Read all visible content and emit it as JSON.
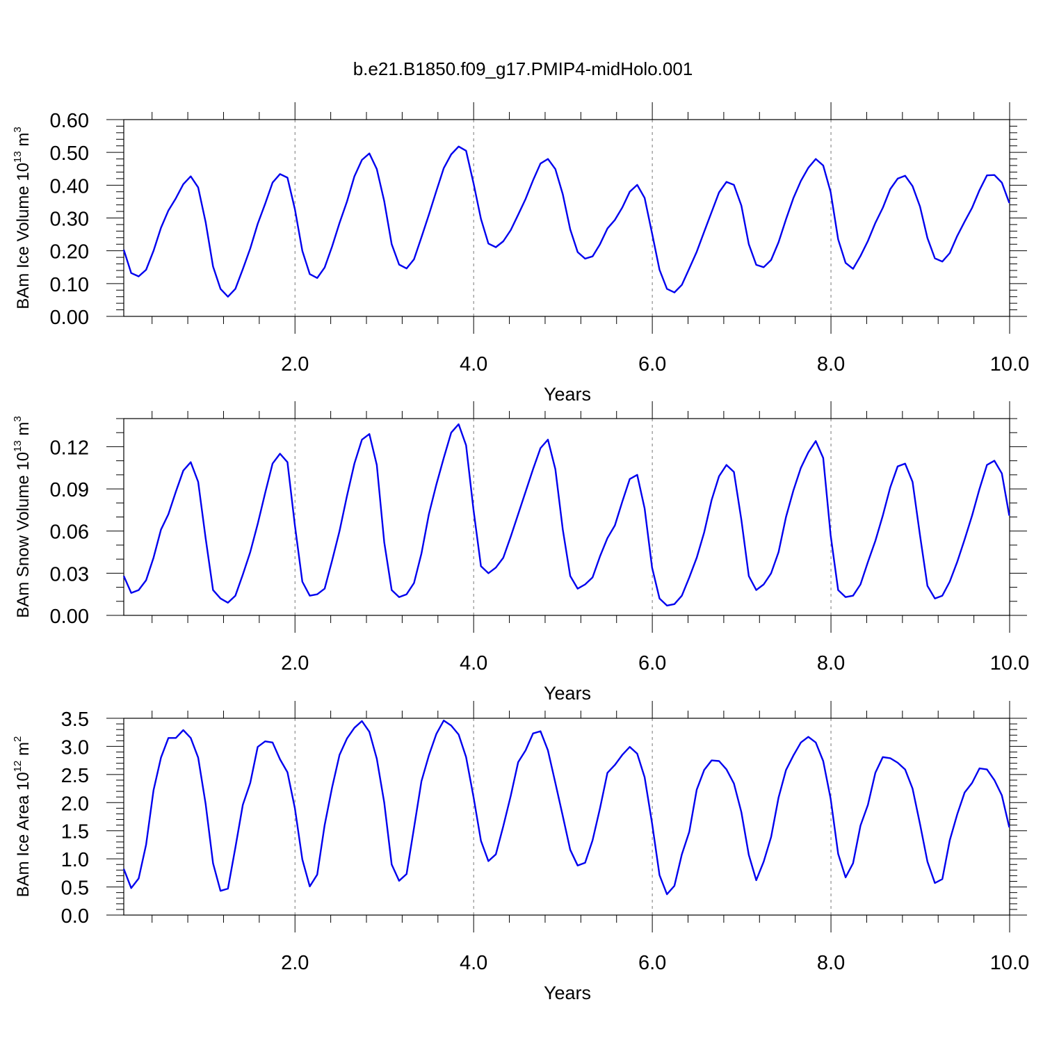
{
  "title": "b.e21.B1850.f09_g17.PMIP4-midHolo.001",
  "chart_data": [
    {
      "type": "line",
      "title": "b.e21.B1850.f09_g17.PMIP4-midHolo.001",
      "xlabel": "Years",
      "ylabel_main": "BAm Ice Volume 10",
      "ylabel_exp": "13",
      "ylabel_unit": " m",
      "ylabel_unit_exp": "3",
      "xlim": [
        0.0833,
        10.0
      ],
      "ylim": [
        0.0,
        0.6
      ],
      "x_ticks": [
        2.0,
        4.0,
        6.0,
        8.0,
        10.0
      ],
      "x_tick_labels": [
        "2.0",
        "4.0",
        "6.0",
        "8.0",
        "10.0"
      ],
      "y_ticks": [
        0.0,
        0.1,
        0.2,
        0.3,
        0.4,
        0.5,
        0.6
      ],
      "y_tick_labels": [
        "0.00",
        "0.10",
        "0.20",
        "0.30",
        "0.40",
        "0.50",
        "0.60"
      ],
      "y_minor_step": 0.02,
      "x_minor_step": 0.4,
      "grid": "vertical dashed at major x ticks",
      "series_color": "#0000ee",
      "x_start": 0.0833,
      "x_step": 0.0833,
      "series": [
        {
          "values": [
            0.203,
            0.132,
            0.122,
            0.142,
            0.2,
            0.27,
            0.323,
            0.36,
            0.403,
            0.427,
            0.393,
            0.288,
            0.152,
            0.084,
            0.06,
            0.084,
            0.144,
            0.207,
            0.282,
            0.343,
            0.408,
            0.434,
            0.423,
            0.327,
            0.2,
            0.129,
            0.117,
            0.149,
            0.213,
            0.285,
            0.35,
            0.427,
            0.477,
            0.497,
            0.449,
            0.351,
            0.22,
            0.158,
            0.146,
            0.174,
            0.241,
            0.31,
            0.382,
            0.452,
            0.494,
            0.518,
            0.505,
            0.406,
            0.297,
            0.222,
            0.211,
            0.229,
            0.263,
            0.31,
            0.358,
            0.415,
            0.466,
            0.48,
            0.449,
            0.372,
            0.265,
            0.196,
            0.176,
            0.183,
            0.22,
            0.268,
            0.294,
            0.332,
            0.38,
            0.401,
            0.361,
            0.253,
            0.142,
            0.084,
            0.073,
            0.096,
            0.146,
            0.197,
            0.258,
            0.318,
            0.378,
            0.41,
            0.401,
            0.338,
            0.22,
            0.157,
            0.15,
            0.172,
            0.226,
            0.296,
            0.361,
            0.413,
            0.453,
            0.48,
            0.46,
            0.379,
            0.235,
            0.163,
            0.145,
            0.184,
            0.23,
            0.285,
            0.331,
            0.388,
            0.42,
            0.429,
            0.397,
            0.335,
            0.239,
            0.177,
            0.167,
            0.193,
            0.245,
            0.289,
            0.331,
            0.385,
            0.43,
            0.431,
            0.408,
            0.346
          ]
        }
      ]
    },
    {
      "type": "line",
      "xlabel": "Years",
      "ylabel_main": "BAm Snow Volume 10",
      "ylabel_exp": "13",
      "ylabel_unit": " m",
      "ylabel_unit_exp": "3",
      "xlim": [
        0.0833,
        10.0
      ],
      "ylim": [
        0.0,
        0.14
      ],
      "x_ticks": [
        2.0,
        4.0,
        6.0,
        8.0,
        10.0
      ],
      "x_tick_labels": [
        "2.0",
        "4.0",
        "6.0",
        "8.0",
        "10.0"
      ],
      "y_ticks": [
        0.0,
        0.03,
        0.06,
        0.09,
        0.12
      ],
      "y_tick_labels": [
        "0.00",
        "0.03",
        "0.06",
        "0.09",
        "0.12"
      ],
      "y_minor_step": 0.01,
      "x_minor_step": 0.4,
      "grid": "vertical dashed at major x ticks",
      "series_color": "#0000ee",
      "x_start": 0.0833,
      "x_step": 0.0833,
      "series": [
        {
          "values": [
            0.028,
            0.016,
            0.018,
            0.025,
            0.041,
            0.061,
            0.072,
            0.088,
            0.103,
            0.109,
            0.095,
            0.055,
            0.018,
            0.012,
            0.009,
            0.014,
            0.029,
            0.045,
            0.065,
            0.087,
            0.108,
            0.115,
            0.109,
            0.064,
            0.024,
            0.014,
            0.015,
            0.019,
            0.039,
            0.06,
            0.085,
            0.108,
            0.125,
            0.129,
            0.107,
            0.052,
            0.018,
            0.013,
            0.015,
            0.023,
            0.044,
            0.072,
            0.093,
            0.112,
            0.13,
            0.136,
            0.121,
            0.075,
            0.035,
            0.03,
            0.034,
            0.041,
            0.056,
            0.072,
            0.088,
            0.104,
            0.119,
            0.125,
            0.104,
            0.061,
            0.028,
            0.019,
            0.022,
            0.027,
            0.042,
            0.055,
            0.064,
            0.081,
            0.097,
            0.1,
            0.076,
            0.034,
            0.012,
            0.007,
            0.008,
            0.014,
            0.027,
            0.041,
            0.059,
            0.082,
            0.099,
            0.107,
            0.102,
            0.068,
            0.028,
            0.018,
            0.022,
            0.03,
            0.045,
            0.07,
            0.089,
            0.105,
            0.116,
            0.124,
            0.112,
            0.057,
            0.018,
            0.013,
            0.014,
            0.022,
            0.038,
            0.053,
            0.071,
            0.091,
            0.106,
            0.108,
            0.095,
            0.057,
            0.021,
            0.012,
            0.014,
            0.024,
            0.038,
            0.054,
            0.071,
            0.09,
            0.107,
            0.11,
            0.101,
            0.071
          ]
        }
      ]
    },
    {
      "type": "line",
      "xlabel": "Years",
      "ylabel_main": "BAm Ice Area 10",
      "ylabel_exp": "12",
      "ylabel_unit": " m",
      "ylabel_unit_exp": "2",
      "xlim": [
        0.0833,
        10.0
      ],
      "ylim": [
        0.0,
        3.5
      ],
      "x_ticks": [
        2.0,
        4.0,
        6.0,
        8.0,
        10.0
      ],
      "x_tick_labels": [
        "2.0",
        "4.0",
        "6.0",
        "8.0",
        "10.0"
      ],
      "y_ticks": [
        0.0,
        0.5,
        1.0,
        1.5,
        2.0,
        2.5,
        3.0,
        3.5
      ],
      "y_tick_labels": [
        "0.0",
        "0.5",
        "1.0",
        "1.5",
        "2.0",
        "2.5",
        "3.0",
        "3.5"
      ],
      "y_minor_step": 0.1,
      "x_minor_step": 0.4,
      "grid": "vertical dashed at major x ticks",
      "series_color": "#0000ee",
      "x_start": 0.0833,
      "x_step": 0.0833,
      "series": [
        {
          "values": [
            0.82,
            0.48,
            0.65,
            1.25,
            2.22,
            2.8,
            3.15,
            3.15,
            3.29,
            3.15,
            2.8,
            1.98,
            0.92,
            0.43,
            0.47,
            1.2,
            1.96,
            2.35,
            2.99,
            3.09,
            3.07,
            2.77,
            2.54,
            1.9,
            0.99,
            0.51,
            0.72,
            1.6,
            2.27,
            2.85,
            3.14,
            3.33,
            3.45,
            3.26,
            2.78,
            2.0,
            0.9,
            0.61,
            0.73,
            1.55,
            2.38,
            2.84,
            3.22,
            3.46,
            3.37,
            3.21,
            2.81,
            2.1,
            1.32,
            0.96,
            1.08,
            1.58,
            2.12,
            2.72,
            2.93,
            3.23,
            3.27,
            2.93,
            2.35,
            1.76,
            1.16,
            0.88,
            0.93,
            1.33,
            1.9,
            2.53,
            2.67,
            2.85,
            2.99,
            2.87,
            2.45,
            1.63,
            0.71,
            0.37,
            0.52,
            1.08,
            1.48,
            2.23,
            2.58,
            2.75,
            2.74,
            2.59,
            2.34,
            1.83,
            1.07,
            0.62,
            0.95,
            1.39,
            2.09,
            2.58,
            2.84,
            3.07,
            3.17,
            3.07,
            2.74,
            2.07,
            1.09,
            0.67,
            0.92,
            1.59,
            1.96,
            2.53,
            2.81,
            2.79,
            2.71,
            2.59,
            2.25,
            1.62,
            0.95,
            0.57,
            0.64,
            1.33,
            1.79,
            2.18,
            2.35,
            2.61,
            2.59,
            2.4,
            2.13,
            1.56
          ]
        }
      ]
    }
  ]
}
